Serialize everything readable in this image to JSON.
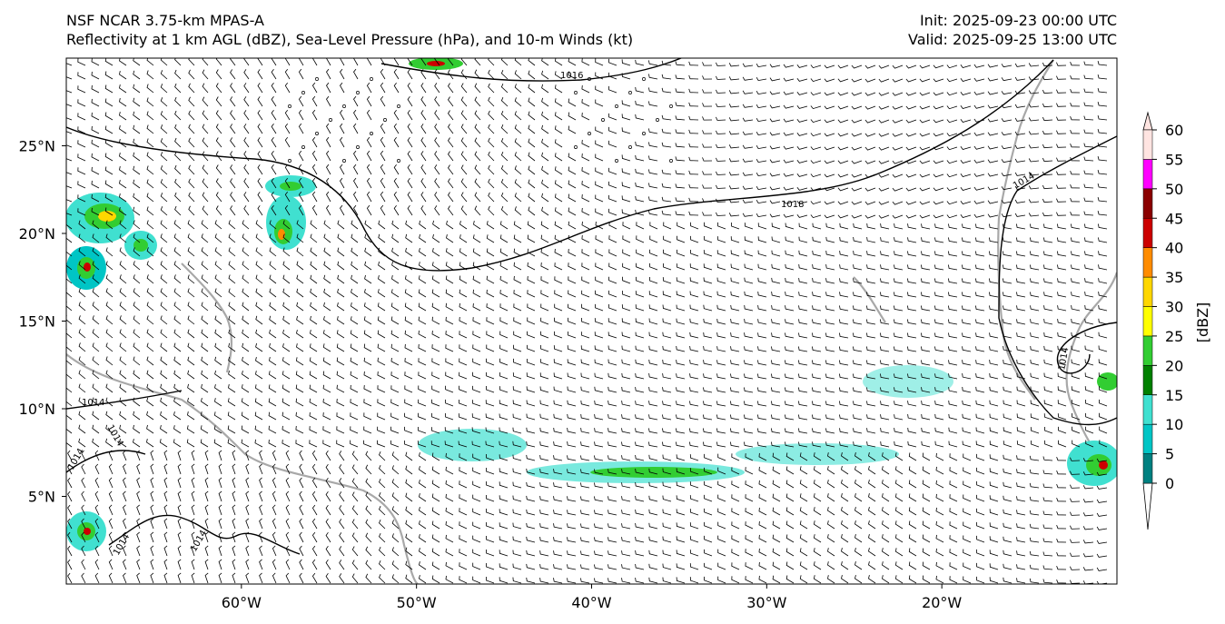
{
  "header": {
    "model": "NSF NCAR 3.75-km MPAS-A",
    "fields": "Reflectivity at 1 km AGL (dBZ), Sea-Level Pressure (hPa), and 10-m Winds (kt)",
    "init": "Init: 2025-09-23 00:00 UTC",
    "valid": "Valid: 2025-09-25 13:00 UTC"
  },
  "map": {
    "lat_labels": [
      "25°N",
      "20°N",
      "15°N",
      "10°N",
      "5°N"
    ],
    "lat_values": [
      25,
      20,
      15,
      10,
      5
    ],
    "lon_labels": [
      "60°W",
      "50°W",
      "40°W",
      "30°W",
      "20°W"
    ],
    "lon_values": [
      -60,
      -50,
      -40,
      -30,
      -20
    ],
    "lon_range": [
      -70,
      -10
    ],
    "lat_range": [
      0,
      30
    ],
    "isobar_labels": [
      "1016",
      "1018",
      "1014",
      "1014",
      "1014",
      "1014",
      "1014",
      "1014",
      "1014"
    ]
  },
  "colorbar": {
    "label": "[dBZ]",
    "ticks": [
      "0",
      "5",
      "10",
      "15",
      "20",
      "25",
      "30",
      "35",
      "40",
      "45",
      "50",
      "55",
      "60"
    ],
    "colors": [
      "#008080",
      "#00c5c5",
      "#40e0d0",
      "#008000",
      "#32cd32",
      "#ffff00",
      "#ffd700",
      "#ff8c00",
      "#cc0000",
      "#8b0000",
      "#ff00ff",
      "#ffe4e1"
    ],
    "under_color": "#ffffff",
    "over_color": "#ffe4e1"
  }
}
